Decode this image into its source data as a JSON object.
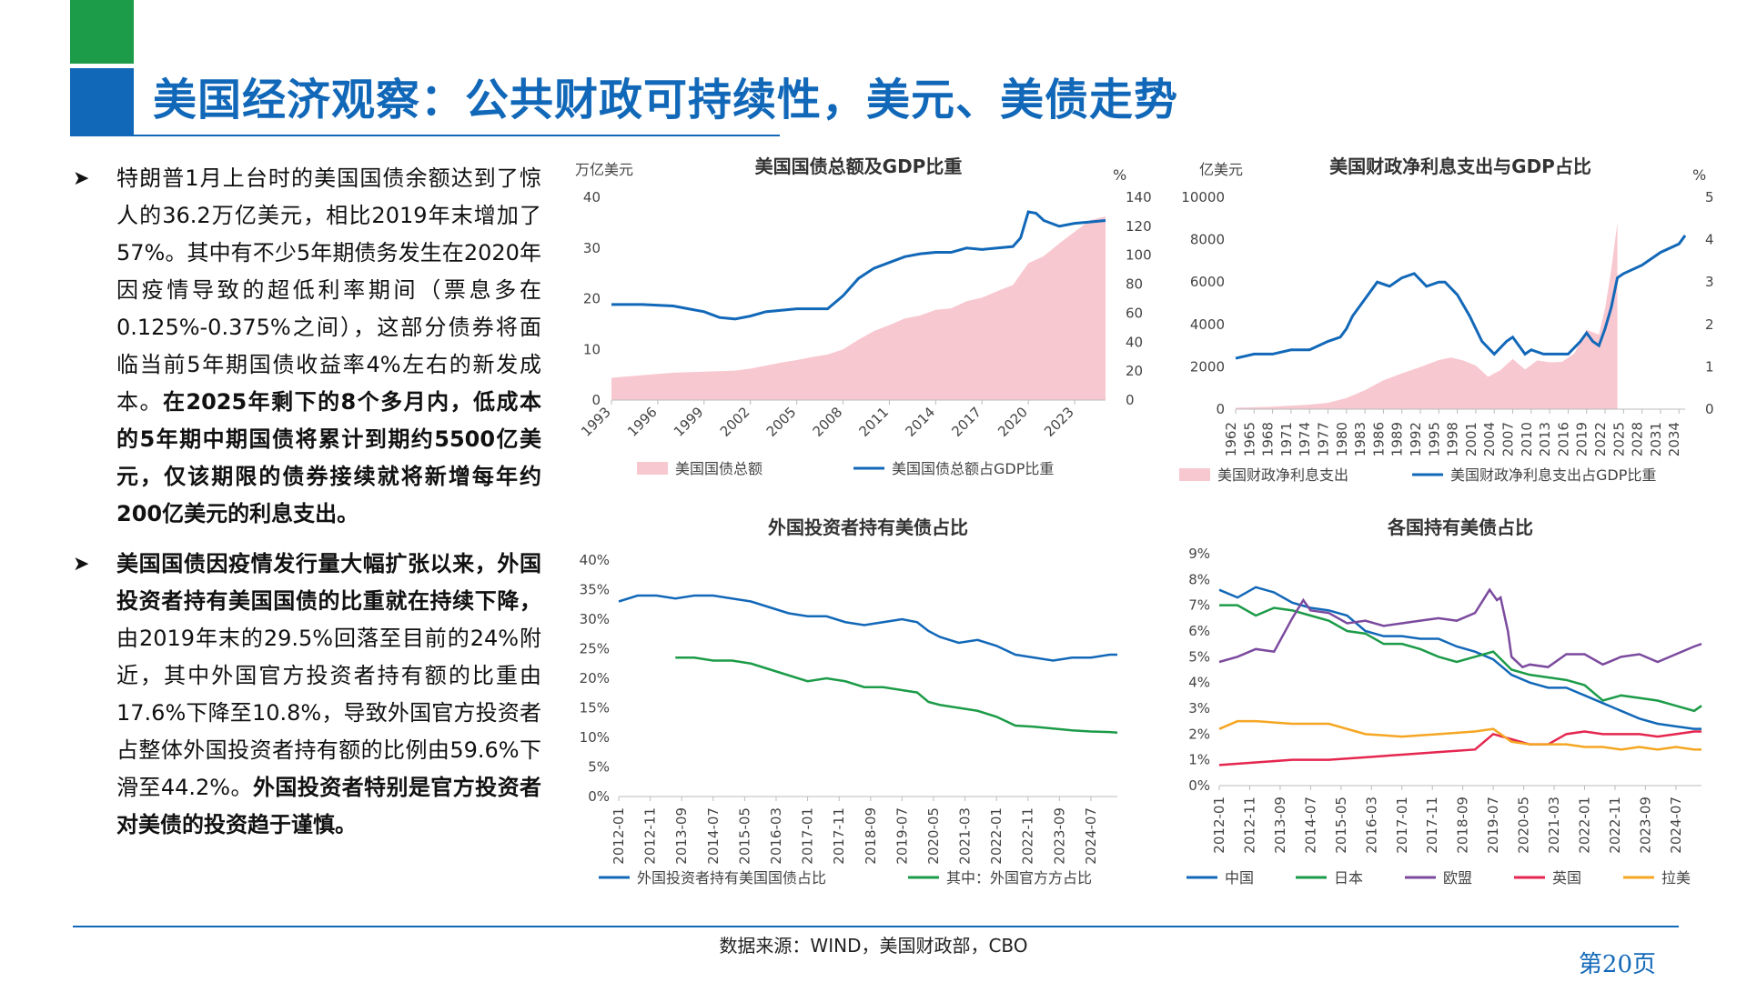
{
  "title": "美国经济观察：公共财政可持续性，美元、美债走势",
  "bullets": [
    {
      "segments": [
        {
          "t": "特朗普1月上台时的美国国债余额达到了惊人的36.2万亿美元，相比2019年末增加了57%。其中有不少5年期债务发生在2020年因疫情导致的超低利率期间（票息多在0.125%-0.375%之间），这部分债券将面临当前5年期国债收益率4%左右的新发成本。",
          "b": false
        },
        {
          "t": "在2025年剩下的8个多月内，低成本的5年期中期国债将累计到期约5500亿美元，仅该期限的债券接续就将新增每年约200亿美元的利息支出。",
          "b": true
        }
      ]
    },
    {
      "segments": [
        {
          "t": "美国国债因疫情发行量大幅扩张以来，外国投资者持有美国国债的比重就在持续下降，",
          "b": true
        },
        {
          "t": "由2019年末的29.5%回落至目前的24%附近，其中外国官方投资者持有额的比重由17.6%下降至10.8%，导致外国官方投资者占整体外国投资者持有额的比例由59.6%下滑至44.2%。",
          "b": false
        },
        {
          "t": "外国投资者特别是官方投资者对美债的投资趋于谨慎。",
          "b": true
        }
      ]
    }
  ],
  "source": "数据来源：WIND，美国财政部，CBO",
  "page": "第20页",
  "colors": {
    "blue": "#1268b8",
    "green": "#1c9b48",
    "purple": "#7b4a9e",
    "red": "#e5264f",
    "orange": "#f5a623",
    "pink": "#f8c8d0"
  },
  "chart_data": [
    {
      "id": "c1",
      "type": "line+area",
      "title": "美国国债总额及GDP比重",
      "ylabel_left": "万亿美元",
      "ylabel_right": "%",
      "ylim_left": [
        0,
        40
      ],
      "ylim_right": [
        0,
        140
      ],
      "yticks_left": [
        "0",
        "10",
        "20",
        "30",
        "40"
      ],
      "yticks_right": [
        "0",
        "20",
        "40",
        "60",
        "80",
        "100",
        "120",
        "140"
      ],
      "xticks": [
        "1993",
        "1996",
        "1999",
        "2002",
        "2005",
        "2008",
        "2011",
        "2014",
        "2017",
        "2020",
        "2023"
      ],
      "series": [
        {
          "name": "美国国债总额",
          "kind": "area",
          "axis": "left",
          "x": [
            1993,
            1995,
            1997,
            1999,
            2001,
            2002,
            2003,
            2004,
            2005,
            2006,
            2007,
            2008,
            2009,
            2010,
            2011,
            2012,
            2013,
            2014,
            2015,
            2016,
            2017,
            2018,
            2019,
            2020,
            2021,
            2022,
            2023,
            2024,
            2025
          ],
          "y": [
            4.4,
            4.9,
            5.4,
            5.6,
            5.8,
            6.2,
            6.8,
            7.4,
            7.9,
            8.5,
            9.0,
            10.0,
            11.9,
            13.6,
            14.8,
            16.1,
            16.7,
            17.8,
            18.1,
            19.5,
            20.2,
            21.5,
            22.7,
            27.0,
            28.4,
            30.9,
            33.2,
            35.5,
            36.2
          ]
        },
        {
          "name": "美国国债总额占GDP比重",
          "kind": "line",
          "axis": "right",
          "x": [
            1993,
            1995,
            1997,
            1999,
            2000,
            2001,
            2002,
            2003,
            2004,
            2005,
            2006,
            2007,
            2008,
            2009,
            2010,
            2011,
            2012,
            2013,
            2014,
            2015,
            2016,
            2017,
            2018,
            2019,
            2019.5,
            2020,
            2020.5,
            2021,
            2022,
            2023,
            2024,
            2025
          ],
          "y": [
            66,
            66,
            65,
            61,
            57,
            56,
            58,
            61,
            62,
            63,
            63,
            63,
            72,
            84,
            91,
            95,
            99,
            101,
            102,
            102,
            105,
            104,
            105,
            106,
            112,
            130,
            129,
            124,
            120,
            122,
            123,
            124
          ]
        }
      ]
    },
    {
      "id": "c2",
      "type": "line+area",
      "title": "美国财政净利息支出与GDP占比",
      "ylabel_left": "亿美元",
      "ylabel_right": "%",
      "ylim_left": [
        0,
        10000
      ],
      "ylim_right": [
        0,
        5
      ],
      "yticks_left": [
        "0",
        "2000",
        "4000",
        "6000",
        "8000",
        "10000"
      ],
      "yticks_right": [
        "0",
        "1",
        "2",
        "3",
        "4",
        "5"
      ],
      "xticks": [
        "1962",
        "1965",
        "1968",
        "1971",
        "1974",
        "1977",
        "1980",
        "1983",
        "1986",
        "1989",
        "1992",
        "1995",
        "1998",
        "2001",
        "2004",
        "2007",
        "2010",
        "2013",
        "2016",
        "2019",
        "2022",
        "2025",
        "2028",
        "2031",
        "2034"
      ],
      "series": [
        {
          "name": "美国财政净利息支出",
          "kind": "area",
          "axis": "left",
          "x": [
            1962,
            1968,
            1974,
            1977,
            1980,
            1983,
            1986,
            1989,
            1992,
            1995,
            1997,
            1999,
            2001,
            2003,
            2005,
            2007,
            2009,
            2011,
            2013,
            2015,
            2017,
            2019,
            2021,
            2022,
            2023,
            2024
          ],
          "y": [
            69,
            116,
            213,
            298,
            527,
            895,
            1360,
            1691,
            1993,
            2320,
            2440,
            2298,
            2060,
            1530,
            1840,
            2370,
            1870,
            2300,
            2210,
            2230,
            2630,
            3750,
            3520,
            4750,
            6580,
            8800
          ]
        },
        {
          "name": "美国财政净利息支出占GDP比重",
          "kind": "line",
          "axis": "right",
          "x": [
            1962,
            1965,
            1968,
            1971,
            1974,
            1977,
            1979,
            1980,
            1981,
            1983,
            1985,
            1987,
            1989,
            1991,
            1993,
            1995,
            1996,
            1998,
            2000,
            2002,
            2004,
            2006,
            2007,
            2008,
            2009,
            2010,
            2012,
            2014,
            2016,
            2018,
            2019,
            2020,
            2021,
            2022,
            2023,
            2024,
            2025,
            2028,
            2031,
            2034,
            2035
          ],
          "y": [
            1.2,
            1.3,
            1.3,
            1.4,
            1.4,
            1.6,
            1.7,
            1.9,
            2.2,
            2.6,
            3.0,
            2.9,
            3.1,
            3.2,
            2.9,
            3.0,
            3.0,
            2.7,
            2.2,
            1.6,
            1.3,
            1.6,
            1.7,
            1.5,
            1.3,
            1.4,
            1.3,
            1.3,
            1.3,
            1.6,
            1.8,
            1.6,
            1.5,
            1.9,
            2.4,
            3.1,
            3.2,
            3.4,
            3.7,
            3.9,
            4.1
          ]
        }
      ]
    },
    {
      "id": "c3",
      "type": "line",
      "title": "外国投资者持有美债占比",
      "ylim": [
        0,
        40
      ],
      "yticks": [
        "0%",
        "5%",
        "10%",
        "15%",
        "20%",
        "25%",
        "30%",
        "35%",
        "40%"
      ],
      "xticks": [
        "2012-01",
        "2012-11",
        "2013-09",
        "2014-07",
        "2015-05",
        "2016-03",
        "2017-01",
        "2017-11",
        "2018-09",
        "2019-07",
        "2020-05",
        "2021-03",
        "2022-01",
        "2022-11",
        "2023-09",
        "2024-07"
      ],
      "x_range": [
        2012.0,
        2025.2
      ],
      "series": [
        {
          "name": "外国投资者持有美国国债占比",
          "color": "#1268b8",
          "x": [
            2012.0,
            2012.5,
            2013.0,
            2013.5,
            2014.0,
            2014.5,
            2015.0,
            2015.5,
            2016.0,
            2016.5,
            2017.0,
            2017.5,
            2018.0,
            2018.5,
            2019.0,
            2019.5,
            2019.9,
            2020.2,
            2020.5,
            2021.0,
            2021.5,
            2022.0,
            2022.5,
            2023.0,
            2023.5,
            2024.0,
            2024.5,
            2025.0,
            2025.2
          ],
          "y": [
            33,
            34,
            34,
            33.5,
            34,
            34,
            33.5,
            33,
            32,
            31,
            30.5,
            30.5,
            29.5,
            29,
            29.5,
            30,
            29.5,
            28,
            27,
            26,
            26.5,
            25.5,
            24,
            23.5,
            23,
            23.5,
            23.5,
            24,
            24
          ]
        },
        {
          "name": "其中：外国官方方占比",
          "color": "#1c9b48",
          "x": [
            2013.5,
            2014.0,
            2014.5,
            2015.0,
            2015.5,
            2016.0,
            2016.5,
            2017.0,
            2017.5,
            2018.0,
            2018.5,
            2019.0,
            2019.5,
            2019.9,
            2020.2,
            2020.5,
            2021.0,
            2021.5,
            2022.0,
            2022.5,
            2023.0,
            2023.5,
            2024.0,
            2024.5,
            2025.0,
            2025.2
          ],
          "y": [
            23.5,
            23.5,
            23,
            23,
            22.5,
            21.5,
            20.5,
            19.5,
            20,
            19.5,
            18.5,
            18.5,
            18,
            17.6,
            16,
            15.5,
            15,
            14.5,
            13.5,
            12,
            11.8,
            11.5,
            11.2,
            11,
            10.9,
            10.8
          ]
        }
      ]
    },
    {
      "id": "c4",
      "type": "line",
      "title": "各国持有美债占比",
      "ylim": [
        0,
        9
      ],
      "yticks": [
        "0%",
        "1%",
        "2%",
        "3%",
        "4%",
        "5%",
        "6%",
        "7%",
        "8%",
        "9%"
      ],
      "xticks": [
        "2012-01",
        "2012-11",
        "2013-09",
        "2014-07",
        "2015-05",
        "2016-03",
        "2017-01",
        "2017-11",
        "2018-09",
        "2019-07",
        "2020-05",
        "2021-03",
        "2022-01",
        "2022-11",
        "2023-09",
        "2024-07"
      ],
      "x_range": [
        2012.0,
        2025.2
      ],
      "series": [
        {
          "name": "中国",
          "color": "#1268b8",
          "x": [
            2012.0,
            2012.5,
            2013.0,
            2013.5,
            2014.0,
            2014.5,
            2015.0,
            2015.5,
            2016.0,
            2016.5,
            2017.0,
            2017.5,
            2018.0,
            2018.5,
            2019.0,
            2019.5,
            2020.0,
            2020.5,
            2021.0,
            2021.5,
            2022.0,
            2022.5,
            2023.0,
            2023.5,
            2024.0,
            2024.5,
            2025.0,
            2025.2
          ],
          "y": [
            7.6,
            7.3,
            7.7,
            7.5,
            7.1,
            6.9,
            6.8,
            6.6,
            6.0,
            5.8,
            5.8,
            5.7,
            5.7,
            5.4,
            5.2,
            4.9,
            4.3,
            4.0,
            3.8,
            3.8,
            3.5,
            3.2,
            2.9,
            2.6,
            2.4,
            2.3,
            2.2,
            2.2
          ]
        },
        {
          "name": "日本",
          "color": "#1c9b48",
          "x": [
            2012.0,
            2012.5,
            2013.0,
            2013.5,
            2014.0,
            2014.5,
            2015.0,
            2015.5,
            2016.0,
            2016.5,
            2017.0,
            2017.5,
            2018.0,
            2018.5,
            2019.0,
            2019.5,
            2020.0,
            2020.5,
            2021.0,
            2021.5,
            2022.0,
            2022.5,
            2023.0,
            2023.5,
            2024.0,
            2024.5,
            2025.0,
            2025.2
          ],
          "y": [
            7.0,
            7.0,
            6.6,
            6.9,
            6.8,
            6.6,
            6.4,
            6.0,
            5.9,
            5.5,
            5.5,
            5.3,
            5.0,
            4.8,
            5.0,
            5.2,
            4.5,
            4.3,
            4.2,
            4.1,
            3.9,
            3.3,
            3.5,
            3.4,
            3.3,
            3.1,
            2.9,
            3.1
          ]
        },
        {
          "name": "欧盟",
          "color": "#7b4a9e",
          "x": [
            2012.0,
            2012.5,
            2013.0,
            2013.5,
            2014.0,
            2014.3,
            2014.5,
            2015.0,
            2015.5,
            2016.0,
            2016.5,
            2017.0,
            2017.5,
            2018.0,
            2018.5,
            2019.0,
            2019.4,
            2019.6,
            2019.7,
            2019.9,
            2020.0,
            2020.3,
            2020.5,
            2021.0,
            2021.5,
            2022.0,
            2022.5,
            2023.0,
            2023.5,
            2024.0,
            2024.5,
            2025.0,
            2025.2
          ],
          "y": [
            4.8,
            5.0,
            5.3,
            5.2,
            6.5,
            7.2,
            6.8,
            6.7,
            6.3,
            6.4,
            6.2,
            6.3,
            6.4,
            6.5,
            6.4,
            6.7,
            7.6,
            7.2,
            7.3,
            6.0,
            5.0,
            4.6,
            4.7,
            4.6,
            5.1,
            5.1,
            4.7,
            5.0,
            5.1,
            4.8,
            5.1,
            5.4,
            5.5
          ]
        },
        {
          "name": "英国",
          "color": "#e5264f",
          "x": [
            2012.0,
            2013.0,
            2014.0,
            2015.0,
            2016.0,
            2017.0,
            2018.0,
            2019.0,
            2019.5,
            2020.0,
            2020.5,
            2021.0,
            2021.5,
            2022.0,
            2022.5,
            2023.0,
            2023.5,
            2024.0,
            2024.5,
            2025.0,
            2025.2
          ],
          "y": [
            0.8,
            0.9,
            1.0,
            1.0,
            1.1,
            1.2,
            1.3,
            1.4,
            2.0,
            1.8,
            1.6,
            1.6,
            2.0,
            2.1,
            2.0,
            2.0,
            2.0,
            1.9,
            2.0,
            2.1,
            2.1
          ]
        },
        {
          "name": "拉美",
          "color": "#f5a623",
          "x": [
            2012.0,
            2012.5,
            2013.0,
            2014.0,
            2015.0,
            2016.0,
            2017.0,
            2018.0,
            2019.0,
            2019.5,
            2020.0,
            2020.5,
            2021.0,
            2021.5,
            2022.0,
            2022.5,
            2023.0,
            2023.5,
            2024.0,
            2024.5,
            2025.0,
            2025.2
          ],
          "y": [
            2.2,
            2.5,
            2.5,
            2.4,
            2.4,
            2.0,
            1.9,
            2.0,
            2.1,
            2.2,
            1.7,
            1.6,
            1.6,
            1.6,
            1.5,
            1.5,
            1.4,
            1.5,
            1.4,
            1.5,
            1.4,
            1.4
          ]
        }
      ]
    }
  ]
}
